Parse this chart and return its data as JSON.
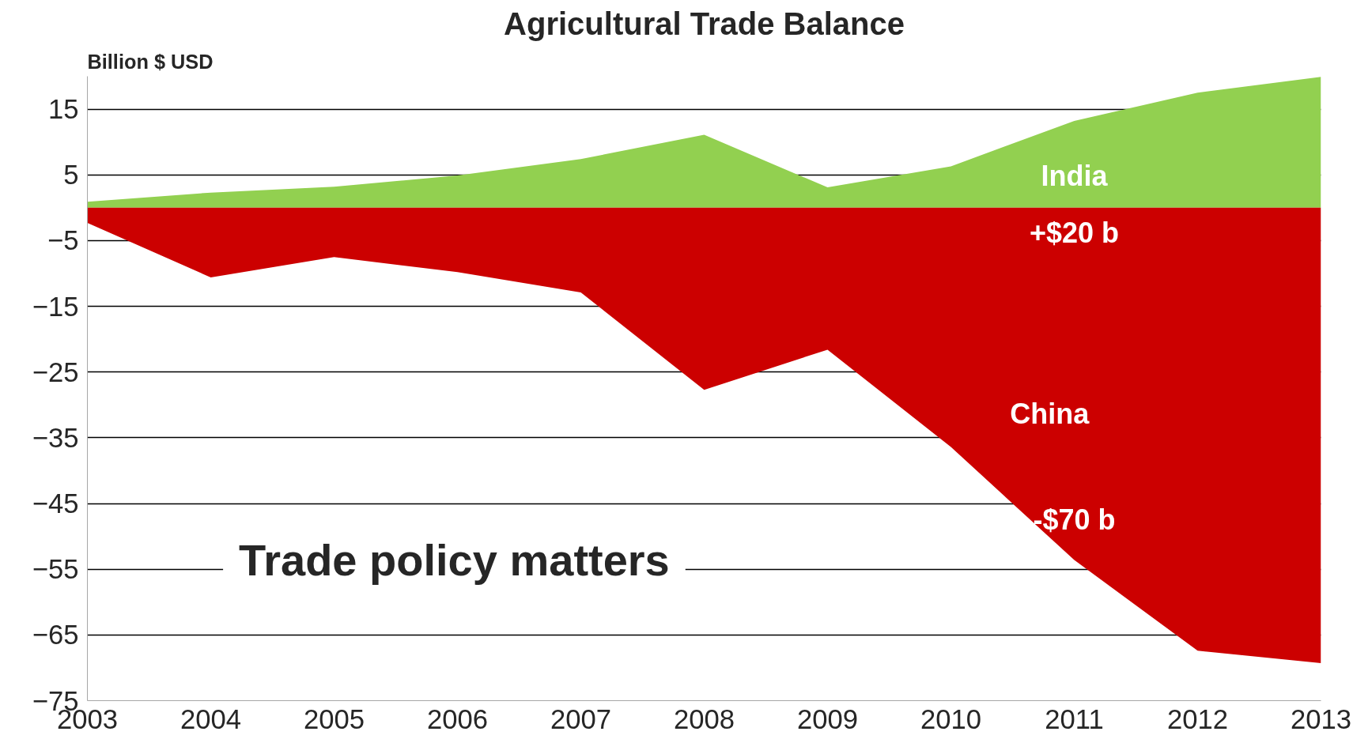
{
  "chart_data": {
    "type": "area",
    "title": "Agricultural Trade Balance",
    "ylabel": "Billion $ USD",
    "x": [
      2003,
      2004,
      2005,
      2006,
      2007,
      2008,
      2009,
      2010,
      2011,
      2012,
      2013
    ],
    "series": [
      {
        "name": "India",
        "color": "#92d050",
        "values": [
          0.9,
          2.3,
          3.2,
          4.9,
          7.4,
          11.1,
          3.1,
          6.3,
          13.2,
          17.5,
          19.9
        ]
      },
      {
        "name": "China",
        "color": "#cc0000",
        "values": [
          -2.3,
          -10.6,
          -7.5,
          -9.8,
          -12.9,
          -27.7,
          -21.6,
          -36.4,
          -53.6,
          -67.4,
          -69.3
        ]
      }
    ],
    "xlim": [
      2003,
      2013
    ],
    "xticks": [
      2003,
      2004,
      2005,
      2006,
      2007,
      2008,
      2009,
      2010,
      2011,
      2012,
      2013
    ],
    "ylim": [
      -75,
      20
    ],
    "yticks": [
      15,
      5,
      -5,
      -15,
      -25,
      -35,
      -45,
      -55,
      -65,
      -75
    ],
    "grid": "y",
    "annotations": [
      "+$20 b",
      "-$70 b",
      "Trade policy matters"
    ]
  }
}
